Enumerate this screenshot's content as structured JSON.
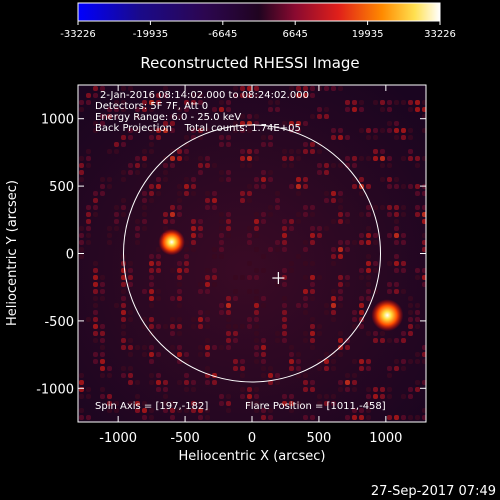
{
  "chart_data": {
    "type": "heatmap",
    "title": "Reconstructed RHESSI Image",
    "xlabel": "Heliocentric X (arcsec)",
    "ylabel": "Heliocentric Y (arcsec)",
    "xlim": [
      -1300,
      1300
    ],
    "ylim": [
      -1250,
      1250
    ],
    "x_ticks": [
      -1000,
      -500,
      0,
      500,
      1000
    ],
    "y_ticks": [
      -1000,
      -500,
      0,
      500,
      1000
    ],
    "colorbar": {
      "min": -33226,
      "max": 33226,
      "ticks": [
        -33226,
        -19935,
        -6645,
        6645,
        19935,
        33226
      ]
    },
    "annotations": {
      "line1": "2-Jan-2016 08:14:02.000 to 08:24:02.000",
      "line2": "Detectors: 5F 7F, Att 0",
      "line3": "Energy Range: 6.0 - 25.0 keV",
      "line4": "Back Projection    Total counts: 1.74E+05",
      "spin_axis": "Spin Axis = [197,-182]",
      "flare_position": "Flare Position = [1011,-458]"
    },
    "solar_disk": {
      "center": [
        0,
        0
      ],
      "radius": 960
    },
    "spin_axis_marker": [
      197,
      -182
    ],
    "sources": [
      {
        "x": 1011,
        "y": -458,
        "peak": 33226
      },
      {
        "x": -600,
        "y": 85,
        "peak": 24000
      }
    ]
  },
  "footer": {
    "timestamp": "27-Sep-2017 07:49"
  }
}
